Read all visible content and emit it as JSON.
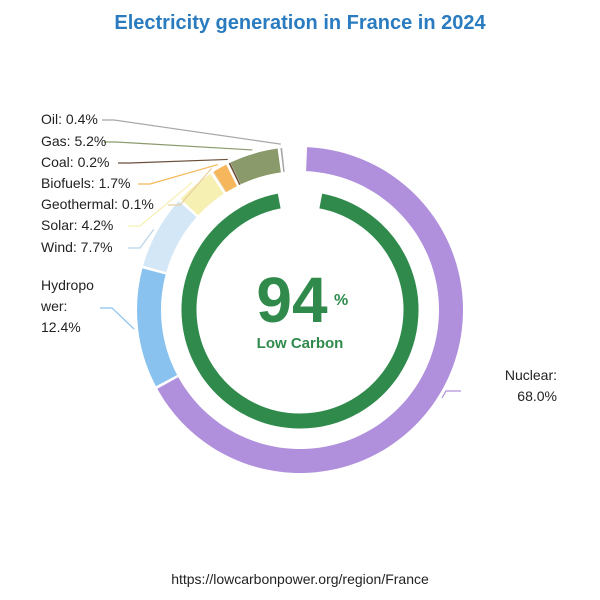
{
  "chart_data": {
    "type": "pie",
    "title": "Electricity generation in France in 2024",
    "slices": [
      {
        "name": "Nuclear",
        "label_lines": [
          "Nuclear:",
          "68.0%"
        ],
        "value": 68.0,
        "color": "#b08fdc"
      },
      {
        "name": "Hydropower",
        "label_lines": [
          "Hydropo",
          "wer:",
          "12.4%"
        ],
        "value": 12.4,
        "color": "#89c2ef"
      },
      {
        "name": "Wind",
        "label_lines": [
          "Wind: 7.7%"
        ],
        "value": 7.7,
        "color": "#d3e7f7"
      },
      {
        "name": "Solar",
        "label_lines": [
          "Solar: 4.2%"
        ],
        "value": 4.2,
        "color": "#f7f0b3"
      },
      {
        "name": "Geothermal",
        "label_lines": [
          "Geothermal: 0.1%"
        ],
        "value": 0.1,
        "color": "#e8cfa0"
      },
      {
        "name": "Biofuels",
        "label_lines": [
          "Biofuels: 1.7%"
        ],
        "value": 1.7,
        "color": "#f6b75c"
      },
      {
        "name": "Coal",
        "label_lines": [
          "Coal: 0.2%"
        ],
        "value": 0.2,
        "color": "#6b4e3a"
      },
      {
        "name": "Gas",
        "label_lines": [
          "Gas: 5.2%"
        ],
        "value": 5.2,
        "color": "#8a9a6a"
      },
      {
        "name": "Oil",
        "label_lines": [
          "Oil: 0.4%"
        ],
        "value": 0.4,
        "color": "#a8a8a8"
      }
    ],
    "center": {
      "value": "94",
      "unit": "%",
      "label": "Low Carbon",
      "fraction": 0.94,
      "color": "#2f8a4c"
    },
    "source": "https://lowcarbonpower.org/region/France"
  }
}
